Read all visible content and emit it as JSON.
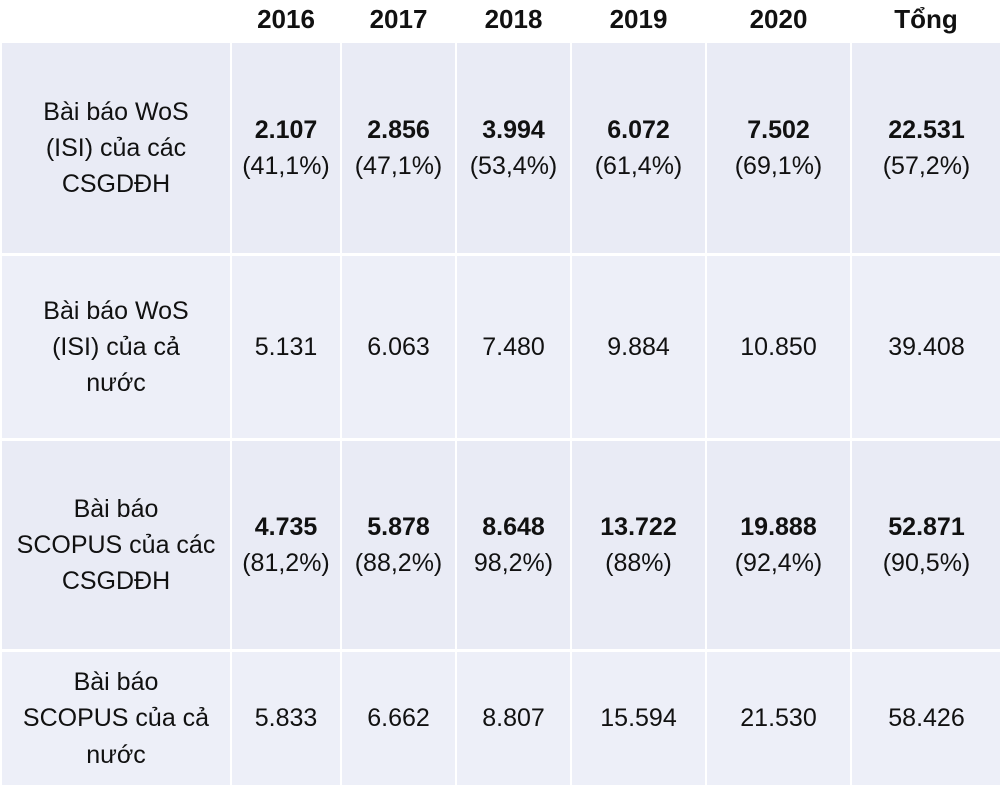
{
  "table": {
    "columns": [
      "2016",
      "2017",
      "2018",
      "2019",
      "2020",
      "Tổng"
    ],
    "rows": [
      {
        "label": [
          "Bài báo WoS",
          "(ISI) của các",
          "CSGDĐH"
        ],
        "cells": [
          {
            "value": "2.107",
            "share": "(41,1%)"
          },
          {
            "value": "2.856",
            "share": "(47,1%)"
          },
          {
            "value": "3.994",
            "share": "(53,4%)"
          },
          {
            "value": "6.072",
            "share": "(61,4%)"
          },
          {
            "value": "7.502",
            "share": "(69,1%)"
          },
          {
            "value": "22.531",
            "share": "(57,2%)"
          }
        ]
      },
      {
        "label": [
          "Bài báo WoS",
          "(ISI) của cả",
          "nước"
        ],
        "cells": [
          {
            "value": "5.131"
          },
          {
            "value": "6.063"
          },
          {
            "value": "7.480"
          },
          {
            "value": "9.884"
          },
          {
            "value": "10.850"
          },
          {
            "value": "39.408"
          }
        ]
      },
      {
        "label": [
          "Bài báo",
          "SCOPUS của các",
          "CSGDĐH"
        ],
        "cells": [
          {
            "value": "4.735",
            "share": "(81,2%)"
          },
          {
            "value": "5.878",
            "share": "(88,2%)"
          },
          {
            "value": "8.648",
            "share": "98,2%)"
          },
          {
            "value": "13.722",
            "share": "(88%)"
          },
          {
            "value": "19.888",
            "share": "(92,4%)"
          },
          {
            "value": "52.871",
            "share": "(90,5%)"
          }
        ]
      },
      {
        "label": [
          "Bài báo",
          "SCOPUS của cả",
          "nước"
        ],
        "cells": [
          {
            "value": "5.833"
          },
          {
            "value": "6.662"
          },
          {
            "value": "8.807"
          },
          {
            "value": "15.594"
          },
          {
            "value": "21.530"
          },
          {
            "value": "58.426"
          }
        ]
      }
    ]
  }
}
